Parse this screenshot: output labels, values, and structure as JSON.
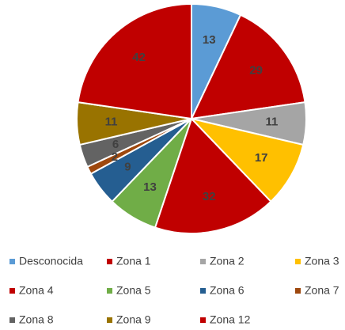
{
  "chart_data": {
    "type": "pie",
    "categories": [
      "Desconocida",
      "Zona 1",
      "Zona 2",
      "Zona 3",
      "Zona 4",
      "Zona 5",
      "Zona 6",
      "Zona 7",
      "Zona 8",
      "Zona 9",
      "Zona 12"
    ],
    "values": [
      13,
      29,
      11,
      17,
      32,
      13,
      9,
      2,
      6,
      11,
      42
    ],
    "colors": [
      "#5b9bd5",
      "#c00000",
      "#a5a5a5",
      "#ffc000",
      "#c00000",
      "#70ad47",
      "#255e91",
      "#9e480e",
      "#636363",
      "#997300",
      "#c00000"
    ],
    "legend": "bottom"
  }
}
